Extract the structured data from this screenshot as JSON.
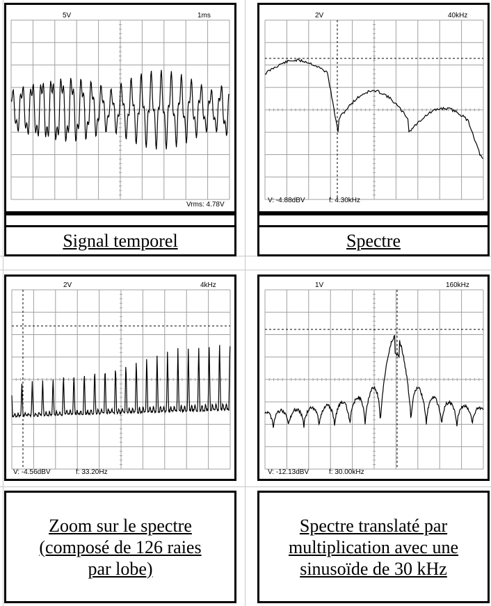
{
  "panels": [
    {
      "id": "temporal",
      "top_left": "5V",
      "top_right": "1ms",
      "bottom_left": "",
      "bottom_mid": "",
      "bottom_right": "Vrms: 4.78V",
      "caption": "Signal temporel"
    },
    {
      "id": "spectrum",
      "top_left": "2V",
      "top_right": "40kHz",
      "bottom_left": "V: -4.88dBV",
      "bottom_mid": "f: 4.30kHz",
      "bottom_right": "",
      "caption": "Spectre"
    },
    {
      "id": "zoom",
      "top_left": "2V",
      "top_right": "4kHz",
      "bottom_left": "V: -4.56dBV",
      "bottom_mid": "f: 33.20Hz",
      "bottom_right": "",
      "caption": "Zoom sur le spectre (composé de 126 raies par lobe)"
    },
    {
      "id": "translated",
      "top_left": "1V",
      "top_right": "160kHz",
      "bottom_left": "V: -12.13dBV",
      "bottom_mid": "f: 30.00kHz",
      "bottom_right": "",
      "caption": "Spectre translaté par multiplication avec une sinusoïde de 30 kHz"
    }
  ],
  "colors": {
    "grid": "#a0a0a0",
    "trace": "#000000",
    "cursor": "#000000",
    "frame": "#000000"
  }
}
